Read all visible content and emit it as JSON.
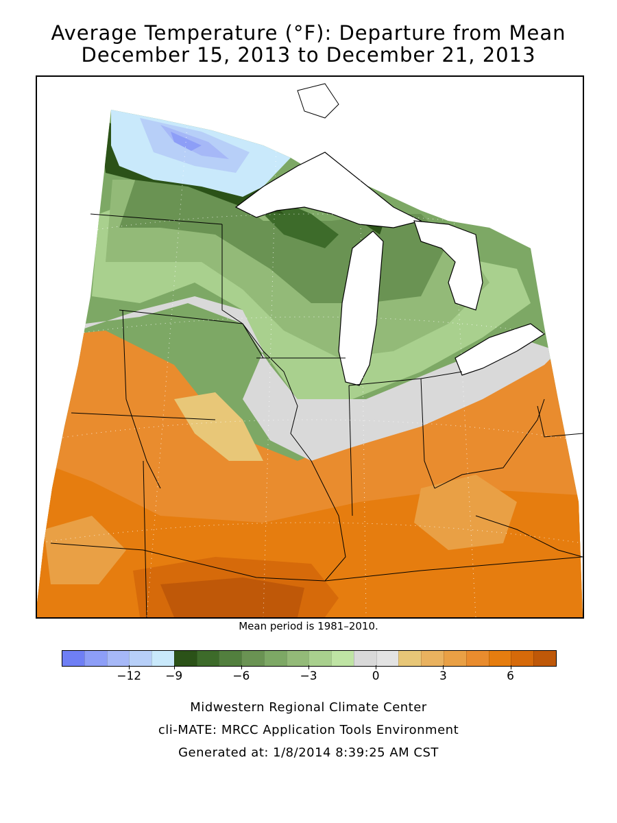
{
  "title": {
    "line1": "Average Temperature (°F): Departure from Mean",
    "line2": "December 15, 2013 to December 21, 2013"
  },
  "map": {
    "region": "Midwest United States",
    "features": [
      "state-borders",
      "great-lakes",
      "lat-lon-grid-dots"
    ]
  },
  "mean_note": "Mean period is 1981–2010.",
  "legend": {
    "colors": [
      "#6f7ff5",
      "#8d9ef7",
      "#a6b8f7",
      "#b7cff8",
      "#c9e9fb",
      "#2b5218",
      "#3d6b2a",
      "#527f3e",
      "#6a9353",
      "#7da865",
      "#93ba78",
      "#a9d08e",
      "#bfe4a4",
      "#d9d9d9",
      "#e3e3e3",
      "#e8c778",
      "#e9b25f",
      "#e9a045",
      "#e98c2e",
      "#e67d0f",
      "#d66a0a",
      "#bf5808"
    ],
    "ticks": [
      {
        "label": "−12",
        "index": 3
      },
      {
        "label": "−9",
        "index": 5
      },
      {
        "label": "−6",
        "index": 8
      },
      {
        "label": "−3",
        "index": 11
      },
      {
        "label": "0",
        "index": 14
      },
      {
        "label": "3",
        "index": 17
      },
      {
        "label": "6",
        "index": 20
      }
    ]
  },
  "footer": {
    "line1": "Midwestern Regional Climate Center",
    "line2": "cli-MATE: MRCC Application Tools Environment",
    "line3": "Generated at: 1/8/2014 8:39:25 AM CST"
  }
}
